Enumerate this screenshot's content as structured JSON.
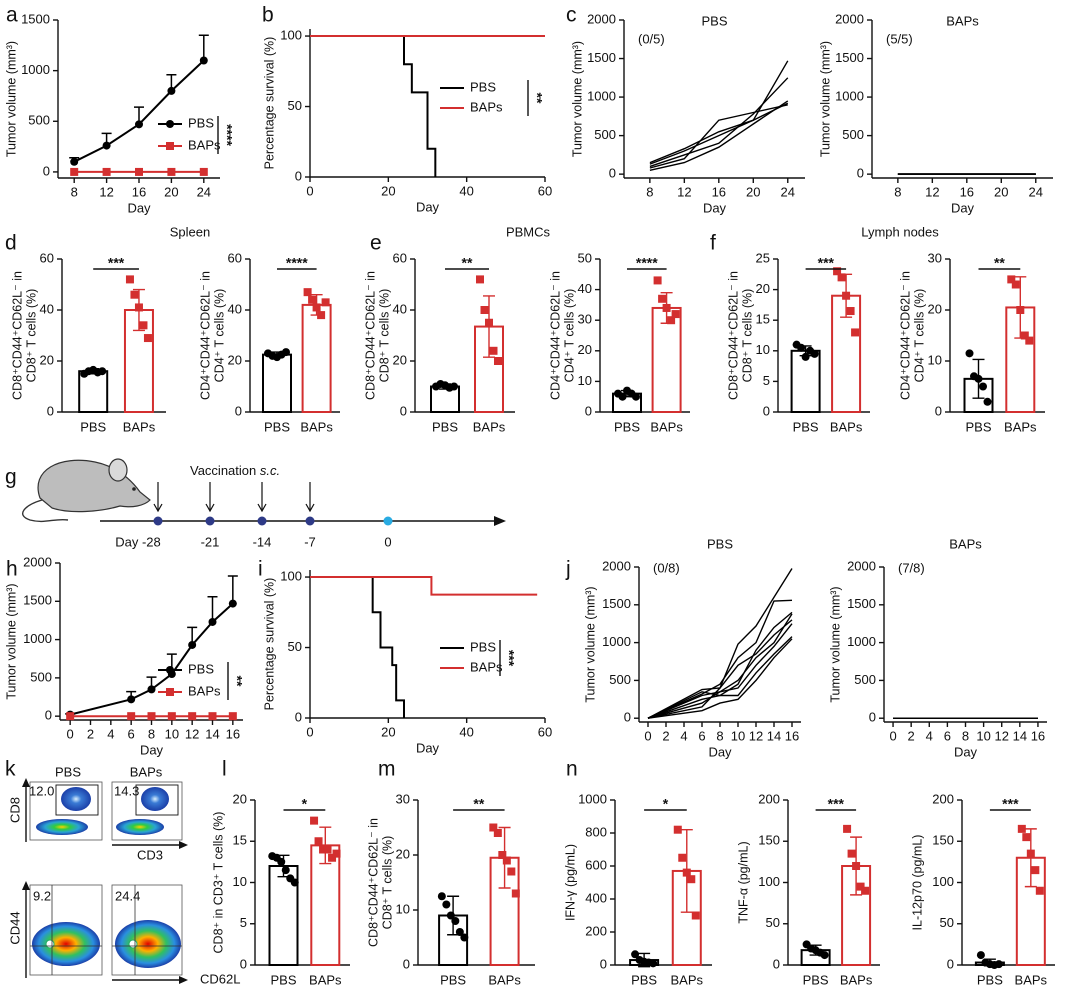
{
  "chart_data": [
    {
      "type": "line",
      "panel": "a",
      "x": [
        8,
        12,
        16,
        20,
        24
      ],
      "xlim": [
        6,
        26
      ],
      "xticks": [
        8,
        12,
        16,
        20,
        24
      ],
      "ylim": [
        -60,
        1500
      ],
      "yticks": [
        0,
        500,
        1000,
        1500
      ],
      "xlabel": "Day",
      "ylabel": "Tumor volume (mm³)",
      "significance": "****",
      "series": [
        {
          "name": "PBS",
          "color": "#000000",
          "marker": "circle",
          "values": [
            100,
            260,
            470,
            800,
            1100
          ],
          "errors": [
            40,
            120,
            170,
            160,
            250
          ]
        },
        {
          "name": "BAPs",
          "color": "#d32f2f",
          "marker": "square",
          "values": [
            0,
            0,
            0,
            0,
            0
          ]
        }
      ]
    },
    {
      "type": "survival",
      "panel": "b",
      "xlim": [
        0,
        60
      ],
      "xticks": [
        0,
        20,
        40,
        60
      ],
      "ylim": [
        0,
        105
      ],
      "yticks": [
        0,
        50,
        100
      ],
      "xlabel": "Day",
      "ylabel": "Percentage survival (%)",
      "significance": "**",
      "series": [
        {
          "name": "PBS",
          "color": "#000000",
          "x": [
            0,
            24,
            26,
            30,
            32
          ],
          "values": [
            100,
            80,
            60,
            20,
            0
          ]
        },
        {
          "name": "BAPs",
          "color": "#d32f2f",
          "x": [
            0,
            60
          ],
          "values": [
            100,
            100
          ]
        }
      ]
    },
    {
      "type": "spaghetti",
      "panel": "c",
      "title": "PBS",
      "annotation": "(0/5)",
      "x": [
        8,
        12,
        16,
        20,
        24
      ],
      "xlim": [
        5,
        26
      ],
      "xticks": [
        8,
        12,
        16,
        20,
        24
      ],
      "ylim": [
        -50,
        2000
      ],
      "yticks": [
        0,
        500,
        1000,
        1500,
        2000
      ],
      "xlabel": "Day",
      "ylabel": "Tumor volume (mm³)",
      "color": "#000000",
      "series": [
        {
          "values": [
            130,
            300,
            500,
            700,
            1470
          ]
        },
        {
          "values": [
            100,
            250,
            400,
            780,
            1250
          ]
        },
        {
          "values": [
            80,
            200,
            700,
            800,
            900
          ]
        },
        {
          "values": [
            50,
            150,
            350,
            650,
            950
          ]
        },
        {
          "values": [
            150,
            330,
            550,
            700,
            920
          ]
        }
      ]
    },
    {
      "type": "spaghetti",
      "title": "BAPs",
      "annotation": "(5/5)",
      "x": [
        8,
        12,
        16,
        20,
        24
      ],
      "xlim": [
        5,
        26
      ],
      "xticks": [
        8,
        12,
        16,
        20,
        24
      ],
      "ylim": [
        -50,
        2000
      ],
      "yticks": [
        0,
        500,
        1000,
        1500,
        2000
      ],
      "xlabel": "Day",
      "ylabel": "Tumor volume (mm³)",
      "color": "#000000",
      "series": [
        {
          "values": [
            0,
            0,
            0,
            0,
            0
          ]
        },
        {
          "values": [
            0,
            0,
            0,
            0,
            0
          ]
        },
        {
          "values": [
            0,
            0,
            0,
            0,
            0
          ]
        },
        {
          "values": [
            0,
            0,
            0,
            0,
            0
          ]
        },
        {
          "values": [
            0,
            0,
            0,
            0,
            0
          ]
        }
      ]
    },
    {
      "type": "bar",
      "panel": "d",
      "group_title": "Spleen",
      "categories": [
        "PBS",
        "BAPs"
      ],
      "colors": [
        "#000000",
        "#d32f2f"
      ],
      "markers": [
        "circle",
        "square"
      ],
      "ylim": [
        0,
        60
      ],
      "yticks": [
        0,
        20,
        40,
        60
      ],
      "ylabel": [
        "CD8⁺CD44⁺CD62L⁻ in",
        "CD8⁺ T cells (%)"
      ],
      "significance": "***",
      "values": [
        16,
        40
      ],
      "errors": [
        1,
        8
      ],
      "points": [
        [
          15,
          16,
          16.5,
          15.5,
          16
        ],
        [
          52,
          46,
          41,
          34,
          29
        ]
      ]
    },
    {
      "type": "bar",
      "categories": [
        "PBS",
        "BAPs"
      ],
      "colors": [
        "#000000",
        "#d32f2f"
      ],
      "markers": [
        "circle",
        "square"
      ],
      "ylim": [
        0,
        60
      ],
      "yticks": [
        0,
        20,
        40,
        60
      ],
      "ylabel": [
        "CD4⁺CD44⁺CD62L⁻ in",
        "CD4⁺ T cells (%)"
      ],
      "significance": "****",
      "values": [
        22.5,
        42
      ],
      "errors": [
        1,
        4
      ],
      "points": [
        [
          23,
          22,
          21.5,
          22.5,
          23.5
        ],
        [
          47,
          44,
          41,
          38,
          43
        ]
      ]
    },
    {
      "type": "bar",
      "panel": "e",
      "group_title": "PBMCs",
      "categories": [
        "PBS",
        "BAPs"
      ],
      "colors": [
        "#000000",
        "#d32f2f"
      ],
      "markers": [
        "circle",
        "square"
      ],
      "ylim": [
        0,
        60
      ],
      "yticks": [
        0,
        20,
        40,
        60
      ],
      "ylabel": [
        "CD8⁺CD44⁺CD62L⁻ in",
        "CD8⁺ T cells (%)"
      ],
      "significance": "**",
      "values": [
        10,
        33.5
      ],
      "errors": [
        1,
        12
      ],
      "points": [
        [
          10,
          11,
          10.5,
          9.5,
          10
        ],
        [
          52,
          40,
          35,
          24,
          20
        ]
      ]
    },
    {
      "type": "bar",
      "categories": [
        "PBS",
        "BAPs"
      ],
      "colors": [
        "#000000",
        "#d32f2f"
      ],
      "markers": [
        "circle",
        "square"
      ],
      "ylim": [
        0,
        50
      ],
      "yticks": [
        0,
        10,
        20,
        30,
        40,
        50
      ],
      "ylabel": [
        "CD4⁺CD44⁺CD62L⁻ in",
        "CD4⁺ T cells (%)"
      ],
      "significance": "****",
      "values": [
        6,
        34
      ],
      "errors": [
        1,
        5
      ],
      "points": [
        [
          6,
          5,
          7,
          6,
          5
        ],
        [
          43,
          37,
          34,
          30,
          32
        ]
      ]
    },
    {
      "type": "bar",
      "panel": "f",
      "group_title": "Lymph nodes",
      "categories": [
        "PBS",
        "BAPs"
      ],
      "colors": [
        "#000000",
        "#d32f2f"
      ],
      "markers": [
        "circle",
        "square"
      ],
      "ylim": [
        0,
        25
      ],
      "yticks": [
        0,
        5,
        10,
        15,
        20,
        25
      ],
      "ylabel": [
        "CD8⁺CD44⁺CD62L⁻ in",
        "CD8⁺ T cells (%)"
      ],
      "significance": "***",
      "values": [
        10,
        19
      ],
      "errors": [
        0.8,
        3.5
      ],
      "points": [
        [
          11,
          10.5,
          9,
          10,
          9.5
        ],
        [
          23,
          22,
          19,
          16.5,
          13
        ]
      ]
    },
    {
      "type": "bar",
      "categories": [
        "PBS",
        "BAPs"
      ],
      "colors": [
        "#000000",
        "#d32f2f"
      ],
      "markers": [
        "circle",
        "square"
      ],
      "ylim": [
        0,
        30
      ],
      "yticks": [
        0,
        10,
        20,
        30
      ],
      "ylabel": [
        "CD4⁺CD44⁺CD62L⁻ in",
        "CD4⁺ T cells (%)"
      ],
      "significance": "**",
      "values": [
        6.5,
        20.5
      ],
      "errors": [
        3.8,
        6
      ],
      "points": [
        [
          11.5,
          7,
          6.5,
          5,
          2
        ],
        [
          26,
          25,
          20,
          15,
          14
        ]
      ]
    },
    {
      "type": "timeline",
      "panel": "g",
      "annotation": "Vaccination",
      "annotation_italic": "s.c.",
      "labels": [
        "Day -28",
        "-21",
        "-14",
        "-7",
        "0"
      ]
    },
    {
      "type": "line",
      "panel": "h",
      "x": [
        0,
        6,
        8,
        10,
        12,
        14,
        16
      ],
      "xlim": [
        -1,
        17
      ],
      "xticks": [
        0,
        2,
        4,
        6,
        8,
        10,
        12,
        14,
        16
      ],
      "ylim": [
        -50,
        2000
      ],
      "yticks": [
        0,
        500,
        1000,
        1500,
        2000
      ],
      "xlabel": "Day",
      "ylabel": "Tumor volume (mm³)",
      "significance": "**",
      "series": [
        {
          "name": "PBS",
          "color": "#000000",
          "marker": "circle",
          "values": [
            20,
            220,
            350,
            550,
            930,
            1230,
            1470
          ],
          "errors": [
            10,
            100,
            160,
            260,
            230,
            330,
            360
          ]
        },
        {
          "name": "BAPs",
          "color": "#d32f2f",
          "marker": "square",
          "values": [
            0,
            0,
            0,
            0,
            0,
            0,
            0
          ]
        }
      ]
    },
    {
      "type": "survival",
      "panel": "i",
      "xlim": [
        0,
        60
      ],
      "xticks": [
        0,
        20,
        40,
        60
      ],
      "ylim": [
        0,
        105
      ],
      "yticks": [
        0,
        50,
        100
      ],
      "xlabel": "Day",
      "ylabel": "Percentage survival (%)",
      "significance": "***",
      "series": [
        {
          "name": "PBS",
          "color": "#000000",
          "x": [
            0,
            16,
            18,
            21,
            22,
            24
          ],
          "values": [
            100,
            75,
            50,
            37.5,
            12.5,
            0
          ]
        },
        {
          "name": "BAPs",
          "color": "#d32f2f",
          "x": [
            0,
            31,
            58
          ],
          "values": [
            100,
            87.5,
            87.5
          ]
        }
      ]
    },
    {
      "type": "spaghetti",
      "panel": "j",
      "title": "PBS",
      "annotation": "(0/8)",
      "x": [
        0,
        6,
        8,
        10,
        12,
        14,
        16
      ],
      "xlim": [
        -1,
        17
      ],
      "xticks": [
        0,
        2,
        4,
        6,
        8,
        10,
        12,
        14,
        16
      ],
      "ylim": [
        -50,
        2000
      ],
      "yticks": [
        0,
        500,
        1000,
        1500,
        2000
      ],
      "xlabel": "Day",
      "ylabel": "Tumor volume (mm³)",
      "color": "#000000",
      "series": [
        {
          "values": [
            0,
            380,
            400,
            980,
            1220,
            1600,
            1980
          ]
        },
        {
          "values": [
            0,
            320,
            450,
            800,
            1000,
            1550,
            1560
          ]
        },
        {
          "values": [
            0,
            250,
            300,
            450,
            900,
            1200,
            1400
          ]
        },
        {
          "values": [
            0,
            200,
            350,
            500,
            800,
            1000,
            1380
          ]
        },
        {
          "values": [
            0,
            150,
            400,
            700,
            850,
            1100,
            1300
          ]
        },
        {
          "values": [
            0,
            300,
            350,
            400,
            700,
            950,
            1250
          ]
        },
        {
          "values": [
            0,
            350,
            300,
            300,
            600,
            850,
            1080
          ]
        },
        {
          "values": [
            0,
            100,
            200,
            250,
            500,
            800,
            1050
          ]
        }
      ]
    },
    {
      "type": "spaghetti",
      "title": "BAPs",
      "annotation": "(7/8)",
      "x": [
        0,
        6,
        8,
        10,
        12,
        14,
        16
      ],
      "xlim": [
        -1,
        17
      ],
      "xticks": [
        0,
        2,
        4,
        6,
        8,
        10,
        12,
        14,
        16
      ],
      "ylim": [
        -50,
        2000
      ],
      "yticks": [
        0,
        500,
        1000,
        1500,
        2000
      ],
      "xlabel": "Day",
      "ylabel": "Tumor volume (mm³)",
      "color": "#000000",
      "series": [
        {
          "values": [
            0,
            0,
            0,
            0,
            0,
            0,
            0
          ]
        },
        {
          "values": [
            0,
            0,
            0,
            0,
            0,
            0,
            0
          ]
        },
        {
          "values": [
            0,
            0,
            0,
            0,
            0,
            0,
            0
          ]
        },
        {
          "values": [
            0,
            0,
            0,
            0,
            0,
            0,
            0
          ]
        },
        {
          "values": [
            0,
            0,
            0,
            0,
            0,
            0,
            0
          ]
        },
        {
          "values": [
            0,
            0,
            0,
            0,
            0,
            0,
            0
          ]
        },
        {
          "values": [
            0,
            0,
            0,
            0,
            0,
            0,
            0
          ]
        },
        {
          "values": [
            0,
            0,
            0,
            0,
            0,
            0,
            0
          ]
        }
      ]
    },
    {
      "type": "flow",
      "panel": "k",
      "columns": [
        "PBS",
        "BAPs"
      ],
      "top_axes": [
        "CD8",
        "CD3"
      ],
      "bottom_axes": [
        "CD44",
        "CD62L"
      ],
      "top_gates": [
        "12.0",
        "14.3"
      ],
      "bottom_gates": [
        "9.2",
        "24.4"
      ]
    },
    {
      "type": "bar",
      "panel": "l",
      "categories": [
        "PBS",
        "BAPs"
      ],
      "colors": [
        "#000000",
        "#d32f2f"
      ],
      "markers": [
        "circle",
        "square"
      ],
      "ylim": [
        0,
        20
      ],
      "yticks": [
        0,
        5,
        10,
        15,
        20
      ],
      "ylabel": "CD8⁺ in CD3⁺ T cells (%)",
      "significance": "*",
      "values": [
        12,
        14.5
      ],
      "errors": [
        1.3,
        2.2
      ],
      "points": [
        [
          13.2,
          13,
          12.5,
          11.5,
          10.5,
          10
        ],
        [
          17.5,
          15,
          14,
          14,
          13,
          13.5
        ]
      ]
    },
    {
      "type": "bar",
      "panel": "m",
      "categories": [
        "PBS",
        "BAPs"
      ],
      "colors": [
        "#000000",
        "#d32f2f"
      ],
      "markers": [
        "circle",
        "square"
      ],
      "ylim": [
        0,
        30
      ],
      "yticks": [
        0,
        10,
        20,
        30
      ],
      "ylabel": [
        "CD8⁺CD44⁺CD62L⁻ in",
        "CD8⁺ T cells (%)"
      ],
      "significance": "**",
      "values": [
        9,
        19.5
      ],
      "errors": [
        3.5,
        5.5
      ],
      "points": [
        [
          12.5,
          11,
          9,
          8,
          6,
          5
        ],
        [
          25,
          24,
          20,
          19,
          17,
          13
        ]
      ]
    },
    {
      "type": "bar",
      "panel": "n",
      "categories": [
        "PBS",
        "BAPs"
      ],
      "colors": [
        "#000000",
        "#d32f2f"
      ],
      "markers": [
        "circle",
        "square"
      ],
      "ylim": [
        0,
        1000
      ],
      "yticks": [
        0,
        200,
        400,
        600,
        800,
        1000
      ],
      "ylabel": "IFN-γ (pg/mL)",
      "significance": "*",
      "values": [
        30,
        570
      ],
      "errors": [
        40,
        250
      ],
      "points": [
        [
          65,
          30,
          20,
          15,
          10
        ],
        [
          820,
          650,
          560,
          520,
          300
        ]
      ]
    },
    {
      "type": "bar",
      "categories": [
        "PBS",
        "BAPs"
      ],
      "colors": [
        "#000000",
        "#d32f2f"
      ],
      "markers": [
        "circle",
        "square"
      ],
      "ylim": [
        0,
        200
      ],
      "yticks": [
        0,
        50,
        100,
        150,
        200
      ],
      "ylabel": "TNF-α (pg/mL)",
      "significance": "***",
      "values": [
        18,
        120
      ],
      "errors": [
        6,
        35
      ],
      "points": [
        [
          25,
          20,
          18,
          15,
          12
        ],
        [
          165,
          135,
          120,
          95,
          90
        ]
      ]
    },
    {
      "type": "bar",
      "categories": [
        "PBS",
        "BAPs"
      ],
      "colors": [
        "#000000",
        "#d32f2f"
      ],
      "markers": [
        "circle",
        "square"
      ],
      "ylim": [
        0,
        200
      ],
      "yticks": [
        0,
        50,
        100,
        150,
        200
      ],
      "ylabel": "IL-12p70 (pg/mL)",
      "significance": "***",
      "values": [
        3,
        130
      ],
      "errors": [
        4,
        35
      ],
      "points": [
        [
          12,
          3,
          1,
          0,
          1
        ],
        [
          165,
          155,
          135,
          115,
          90
        ]
      ]
    }
  ]
}
